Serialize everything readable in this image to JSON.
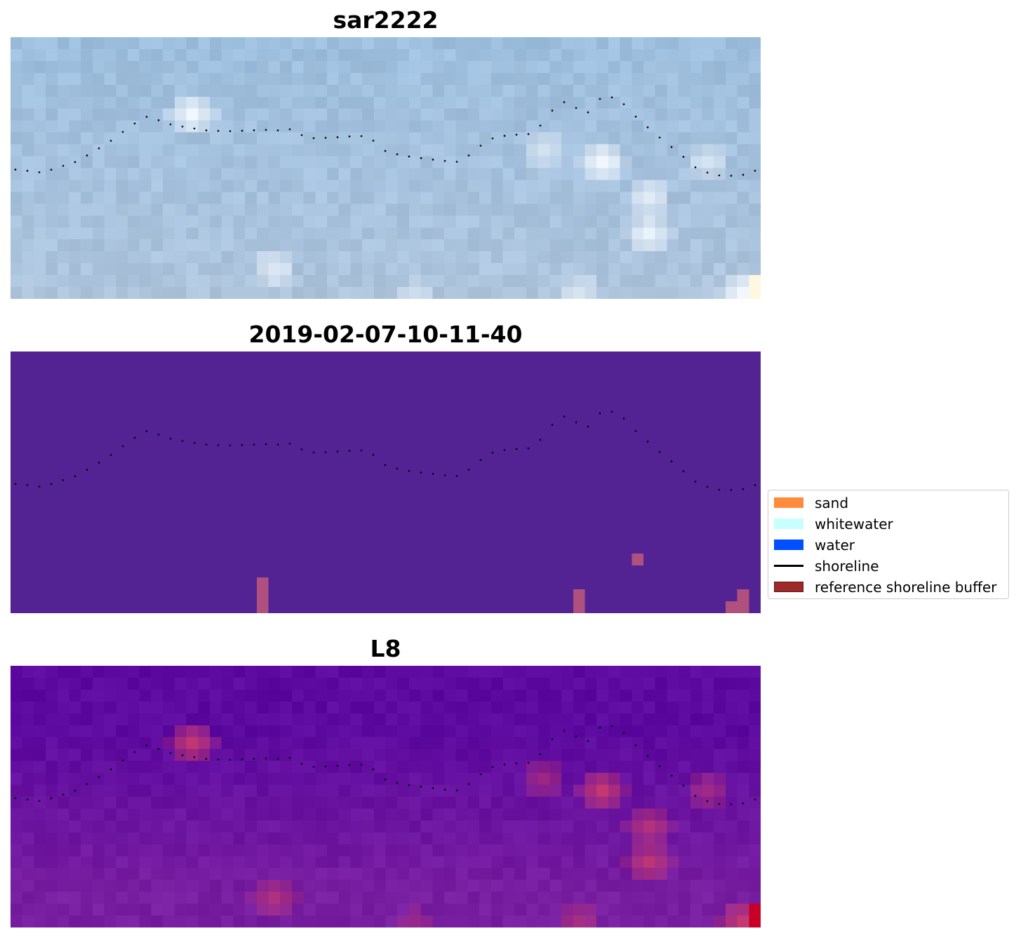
{
  "panels": [
    {
      "title": "sar2222"
    },
    {
      "title": "2019-02-07-10-11-40"
    },
    {
      "title": "L8"
    }
  ],
  "legend": {
    "items": [
      {
        "label": "sand",
        "kind": "patch",
        "color": "#ff8c3c",
        "edge": "#ff8c3c"
      },
      {
        "label": "whitewater",
        "kind": "patch",
        "color": "#c8ffff",
        "edge": "#c8ffff"
      },
      {
        "label": "water",
        "kind": "patch",
        "color": "#0050ff",
        "edge": "#0050ff"
      },
      {
        "label": "shoreline",
        "kind": "line",
        "color": "#000000"
      },
      {
        "label": "reference shoreline buffer",
        "kind": "patch",
        "color": "#9c2a2a",
        "edge": "#6a1414"
      }
    ]
  },
  "colors": {
    "rgb_panel": "#a6bfdc",
    "classified_panel": "#532394",
    "index_panel": "#5d0aa0",
    "shoreline": "#000000"
  }
}
